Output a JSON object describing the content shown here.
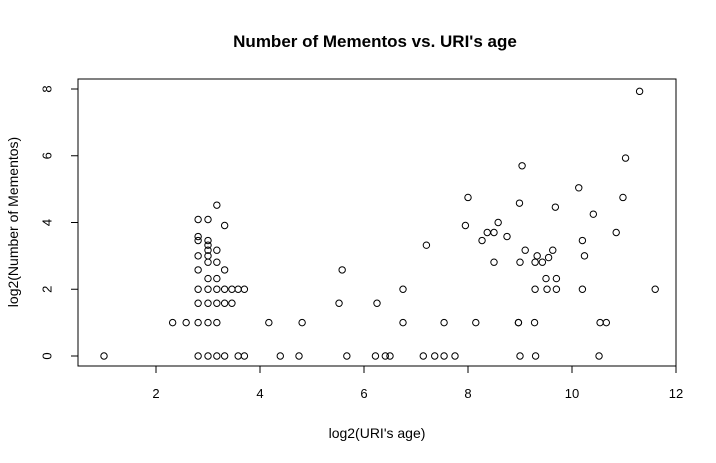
{
  "chart_data": {
    "type": "scatter",
    "title": "Number of Mementos vs. URI's age",
    "xlabel": "log2(URI's age)",
    "ylabel": "log2(Number of Mementos)",
    "xlim": [
      0.5,
      12.0
    ],
    "ylim": [
      -0.3,
      8.3
    ],
    "xticks": [
      2,
      4,
      6,
      8,
      10,
      12
    ],
    "yticks": [
      0,
      2,
      4,
      6,
      8
    ],
    "grid": false,
    "legend": "none",
    "marker": "open-circle",
    "color": "#000000",
    "points": [
      [
        1.0,
        0
      ],
      [
        2.32,
        1
      ],
      [
        2.58,
        1
      ],
      [
        2.81,
        0
      ],
      [
        2.81,
        1
      ],
      [
        2.81,
        1.58
      ],
      [
        2.81,
        2
      ],
      [
        2.81,
        2.58
      ],
      [
        2.81,
        3
      ],
      [
        2.81,
        3.46
      ],
      [
        2.81,
        3.58
      ],
      [
        2.81,
        4.09
      ],
      [
        3.0,
        0
      ],
      [
        3.0,
        1
      ],
      [
        3.0,
        1.58
      ],
      [
        3.0,
        2
      ],
      [
        3.0,
        2.32
      ],
      [
        3.0,
        2.81
      ],
      [
        3.0,
        3
      ],
      [
        3.0,
        3.17
      ],
      [
        3.0,
        3.32
      ],
      [
        3.0,
        3.46
      ],
      [
        3.0,
        4.09
      ],
      [
        3.17,
        0
      ],
      [
        3.17,
        1
      ],
      [
        3.17,
        1.58
      ],
      [
        3.17,
        2
      ],
      [
        3.17,
        2.32
      ],
      [
        3.17,
        2.81
      ],
      [
        3.17,
        3.17
      ],
      [
        3.17,
        4.52
      ],
      [
        3.32,
        0
      ],
      [
        3.32,
        1.58
      ],
      [
        3.32,
        2
      ],
      [
        3.32,
        2.58
      ],
      [
        3.32,
        3.91
      ],
      [
        3.46,
        1.58
      ],
      [
        3.46,
        2
      ],
      [
        3.58,
        0
      ],
      [
        3.58,
        2
      ],
      [
        3.7,
        0
      ],
      [
        3.7,
        2
      ],
      [
        4.17,
        1
      ],
      [
        4.39,
        0
      ],
      [
        4.75,
        0
      ],
      [
        4.81,
        1
      ],
      [
        5.52,
        1.58
      ],
      [
        5.58,
        2.58
      ],
      [
        5.67,
        0
      ],
      [
        6.22,
        0
      ],
      [
        6.25,
        1.58
      ],
      [
        6.41,
        0
      ],
      [
        6.5,
        0
      ],
      [
        6.75,
        2
      ],
      [
        6.75,
        1
      ],
      [
        7.14,
        0
      ],
      [
        7.2,
        3.32
      ],
      [
        7.36,
        0
      ],
      [
        7.54,
        1
      ],
      [
        7.54,
        0
      ],
      [
        7.75,
        0
      ],
      [
        7.95,
        3.91
      ],
      [
        8.0,
        4.75
      ],
      [
        8.15,
        1
      ],
      [
        8.27,
        3.46
      ],
      [
        8.37,
        3.7
      ],
      [
        8.5,
        2.81
      ],
      [
        8.5,
        3.7
      ],
      [
        8.58,
        4
      ],
      [
        8.75,
        3.58
      ],
      [
        8.97,
        1
      ],
      [
        8.97,
        1
      ],
      [
        8.99,
        4.58
      ],
      [
        9.0,
        0
      ],
      [
        9.0,
        2.81
      ],
      [
        9.04,
        5.7
      ],
      [
        9.1,
        3.17
      ],
      [
        9.28,
        1
      ],
      [
        9.29,
        2
      ],
      [
        9.29,
        2.81
      ],
      [
        9.3,
        0
      ],
      [
        9.33,
        3
      ],
      [
        9.43,
        2.81
      ],
      [
        9.5,
        2.32
      ],
      [
        9.52,
        2
      ],
      [
        9.55,
        2.95
      ],
      [
        9.63,
        3.17
      ],
      [
        9.68,
        4.46
      ],
      [
        9.7,
        2
      ],
      [
        9.7,
        2.32
      ],
      [
        10.13,
        5.04
      ],
      [
        10.2,
        3.46
      ],
      [
        10.2,
        2
      ],
      [
        10.24,
        3
      ],
      [
        10.41,
        4.25
      ],
      [
        10.52,
        0
      ],
      [
        10.54,
        1
      ],
      [
        10.66,
        1
      ],
      [
        10.85,
        3.7
      ],
      [
        10.98,
        4.75
      ],
      [
        11.03,
        5.93
      ],
      [
        11.3,
        7.93
      ],
      [
        11.6,
        2
      ]
    ]
  }
}
